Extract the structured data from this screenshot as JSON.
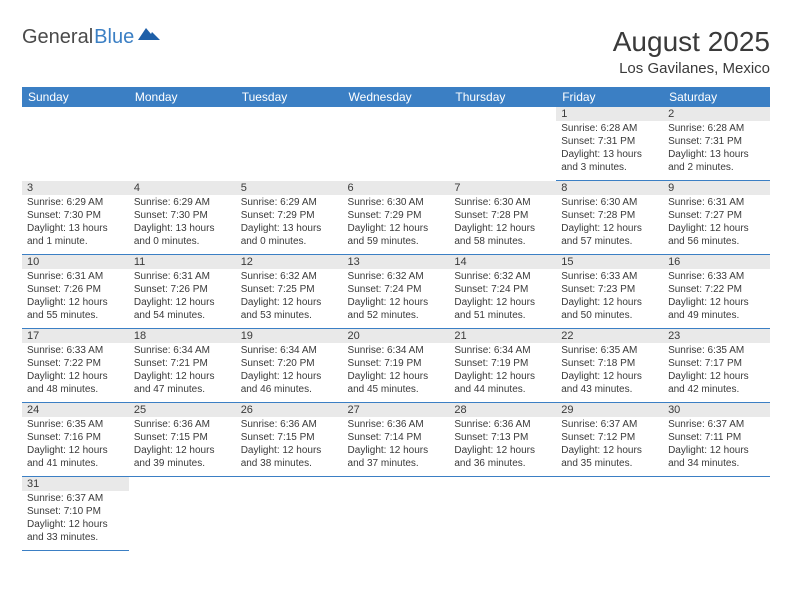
{
  "logo": {
    "part1": "General",
    "part2": "Blue"
  },
  "title": "August 2025",
  "location": "Los Gavilanes, Mexico",
  "colors": {
    "header_bg": "#3b7fc4",
    "header_text": "#ffffff",
    "daynum_bg": "#e9e9e9",
    "cell_border": "#3b7fc4",
    "body_text": "#3a3a3a",
    "page_bg": "#ffffff"
  },
  "day_headers": [
    "Sunday",
    "Monday",
    "Tuesday",
    "Wednesday",
    "Thursday",
    "Friday",
    "Saturday"
  ],
  "weeks": [
    [
      null,
      null,
      null,
      null,
      null,
      {
        "n": "1",
        "sunrise": "Sunrise: 6:28 AM",
        "sunset": "Sunset: 7:31 PM",
        "day1": "Daylight: 13 hours",
        "day2": "and 3 minutes."
      },
      {
        "n": "2",
        "sunrise": "Sunrise: 6:28 AM",
        "sunset": "Sunset: 7:31 PM",
        "day1": "Daylight: 13 hours",
        "day2": "and 2 minutes."
      }
    ],
    [
      {
        "n": "3",
        "sunrise": "Sunrise: 6:29 AM",
        "sunset": "Sunset: 7:30 PM",
        "day1": "Daylight: 13 hours",
        "day2": "and 1 minute."
      },
      {
        "n": "4",
        "sunrise": "Sunrise: 6:29 AM",
        "sunset": "Sunset: 7:30 PM",
        "day1": "Daylight: 13 hours",
        "day2": "and 0 minutes."
      },
      {
        "n": "5",
        "sunrise": "Sunrise: 6:29 AM",
        "sunset": "Sunset: 7:29 PM",
        "day1": "Daylight: 13 hours",
        "day2": "and 0 minutes."
      },
      {
        "n": "6",
        "sunrise": "Sunrise: 6:30 AM",
        "sunset": "Sunset: 7:29 PM",
        "day1": "Daylight: 12 hours",
        "day2": "and 59 minutes."
      },
      {
        "n": "7",
        "sunrise": "Sunrise: 6:30 AM",
        "sunset": "Sunset: 7:28 PM",
        "day1": "Daylight: 12 hours",
        "day2": "and 58 minutes."
      },
      {
        "n": "8",
        "sunrise": "Sunrise: 6:30 AM",
        "sunset": "Sunset: 7:28 PM",
        "day1": "Daylight: 12 hours",
        "day2": "and 57 minutes."
      },
      {
        "n": "9",
        "sunrise": "Sunrise: 6:31 AM",
        "sunset": "Sunset: 7:27 PM",
        "day1": "Daylight: 12 hours",
        "day2": "and 56 minutes."
      }
    ],
    [
      {
        "n": "10",
        "sunrise": "Sunrise: 6:31 AM",
        "sunset": "Sunset: 7:26 PM",
        "day1": "Daylight: 12 hours",
        "day2": "and 55 minutes."
      },
      {
        "n": "11",
        "sunrise": "Sunrise: 6:31 AM",
        "sunset": "Sunset: 7:26 PM",
        "day1": "Daylight: 12 hours",
        "day2": "and 54 minutes."
      },
      {
        "n": "12",
        "sunrise": "Sunrise: 6:32 AM",
        "sunset": "Sunset: 7:25 PM",
        "day1": "Daylight: 12 hours",
        "day2": "and 53 minutes."
      },
      {
        "n": "13",
        "sunrise": "Sunrise: 6:32 AM",
        "sunset": "Sunset: 7:24 PM",
        "day1": "Daylight: 12 hours",
        "day2": "and 52 minutes."
      },
      {
        "n": "14",
        "sunrise": "Sunrise: 6:32 AM",
        "sunset": "Sunset: 7:24 PM",
        "day1": "Daylight: 12 hours",
        "day2": "and 51 minutes."
      },
      {
        "n": "15",
        "sunrise": "Sunrise: 6:33 AM",
        "sunset": "Sunset: 7:23 PM",
        "day1": "Daylight: 12 hours",
        "day2": "and 50 minutes."
      },
      {
        "n": "16",
        "sunrise": "Sunrise: 6:33 AM",
        "sunset": "Sunset: 7:22 PM",
        "day1": "Daylight: 12 hours",
        "day2": "and 49 minutes."
      }
    ],
    [
      {
        "n": "17",
        "sunrise": "Sunrise: 6:33 AM",
        "sunset": "Sunset: 7:22 PM",
        "day1": "Daylight: 12 hours",
        "day2": "and 48 minutes."
      },
      {
        "n": "18",
        "sunrise": "Sunrise: 6:34 AM",
        "sunset": "Sunset: 7:21 PM",
        "day1": "Daylight: 12 hours",
        "day2": "and 47 minutes."
      },
      {
        "n": "19",
        "sunrise": "Sunrise: 6:34 AM",
        "sunset": "Sunset: 7:20 PM",
        "day1": "Daylight: 12 hours",
        "day2": "and 46 minutes."
      },
      {
        "n": "20",
        "sunrise": "Sunrise: 6:34 AM",
        "sunset": "Sunset: 7:19 PM",
        "day1": "Daylight: 12 hours",
        "day2": "and 45 minutes."
      },
      {
        "n": "21",
        "sunrise": "Sunrise: 6:34 AM",
        "sunset": "Sunset: 7:19 PM",
        "day1": "Daylight: 12 hours",
        "day2": "and 44 minutes."
      },
      {
        "n": "22",
        "sunrise": "Sunrise: 6:35 AM",
        "sunset": "Sunset: 7:18 PM",
        "day1": "Daylight: 12 hours",
        "day2": "and 43 minutes."
      },
      {
        "n": "23",
        "sunrise": "Sunrise: 6:35 AM",
        "sunset": "Sunset: 7:17 PM",
        "day1": "Daylight: 12 hours",
        "day2": "and 42 minutes."
      }
    ],
    [
      {
        "n": "24",
        "sunrise": "Sunrise: 6:35 AM",
        "sunset": "Sunset: 7:16 PM",
        "day1": "Daylight: 12 hours",
        "day2": "and 41 minutes."
      },
      {
        "n": "25",
        "sunrise": "Sunrise: 6:36 AM",
        "sunset": "Sunset: 7:15 PM",
        "day1": "Daylight: 12 hours",
        "day2": "and 39 minutes."
      },
      {
        "n": "26",
        "sunrise": "Sunrise: 6:36 AM",
        "sunset": "Sunset: 7:15 PM",
        "day1": "Daylight: 12 hours",
        "day2": "and 38 minutes."
      },
      {
        "n": "27",
        "sunrise": "Sunrise: 6:36 AM",
        "sunset": "Sunset: 7:14 PM",
        "day1": "Daylight: 12 hours",
        "day2": "and 37 minutes."
      },
      {
        "n": "28",
        "sunrise": "Sunrise: 6:36 AM",
        "sunset": "Sunset: 7:13 PM",
        "day1": "Daylight: 12 hours",
        "day2": "and 36 minutes."
      },
      {
        "n": "29",
        "sunrise": "Sunrise: 6:37 AM",
        "sunset": "Sunset: 7:12 PM",
        "day1": "Daylight: 12 hours",
        "day2": "and 35 minutes."
      },
      {
        "n": "30",
        "sunrise": "Sunrise: 6:37 AM",
        "sunset": "Sunset: 7:11 PM",
        "day1": "Daylight: 12 hours",
        "day2": "and 34 minutes."
      }
    ],
    [
      {
        "n": "31",
        "sunrise": "Sunrise: 6:37 AM",
        "sunset": "Sunset: 7:10 PM",
        "day1": "Daylight: 12 hours",
        "day2": "and 33 minutes."
      },
      null,
      null,
      null,
      null,
      null,
      null
    ]
  ]
}
